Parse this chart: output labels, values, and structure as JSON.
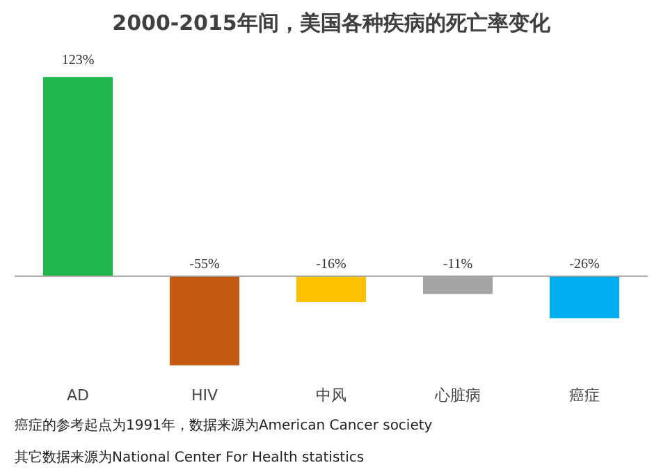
{
  "chart_data": {
    "type": "bar",
    "title": "2000-2015年间，美国各种疾病的死亡率变化",
    "categories": [
      "AD",
      "HIV",
      "中风",
      "心脏病",
      "癌症"
    ],
    "values": [
      123,
      -55,
      -16,
      -11,
      -26
    ],
    "value_labels": [
      "123%",
      "-55%",
      "-16%",
      "-11%",
      "-26%"
    ],
    "colors": [
      "#1fb84e",
      "#c55a11",
      "#ffc000",
      "#a5a5a5",
      "#00b0f0"
    ],
    "grid": false,
    "annotations": [
      "癌症的参考起点为1991年，数据来源为American Cancer society",
      "其它数据来源为National Center For  Health statistics"
    ]
  }
}
